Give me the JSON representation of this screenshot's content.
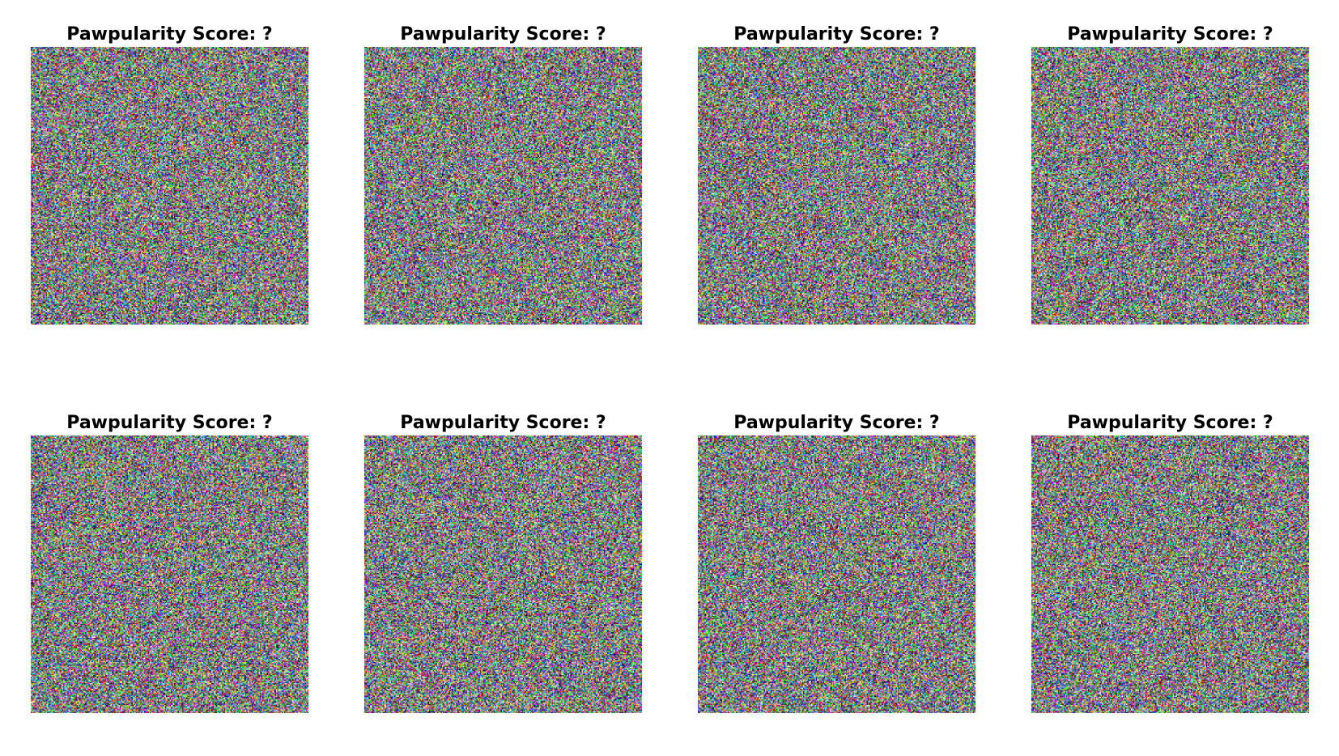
{
  "figure": {
    "panels": [
      {
        "title": "Pawpularity Score: ?",
        "image": "random-noise-image"
      },
      {
        "title": "Pawpularity Score: ?",
        "image": "random-noise-image"
      },
      {
        "title": "Pawpularity Score: ?",
        "image": "random-noise-image"
      },
      {
        "title": "Pawpularity Score: ?",
        "image": "random-noise-image"
      },
      {
        "title": "Pawpularity Score: ?",
        "image": "random-noise-image"
      },
      {
        "title": "Pawpularity Score: ?",
        "image": "random-noise-image"
      },
      {
        "title": "Pawpularity Score: ?",
        "image": "random-noise-image"
      },
      {
        "title": "Pawpularity Score: ?",
        "image": "random-noise-image"
      }
    ]
  }
}
